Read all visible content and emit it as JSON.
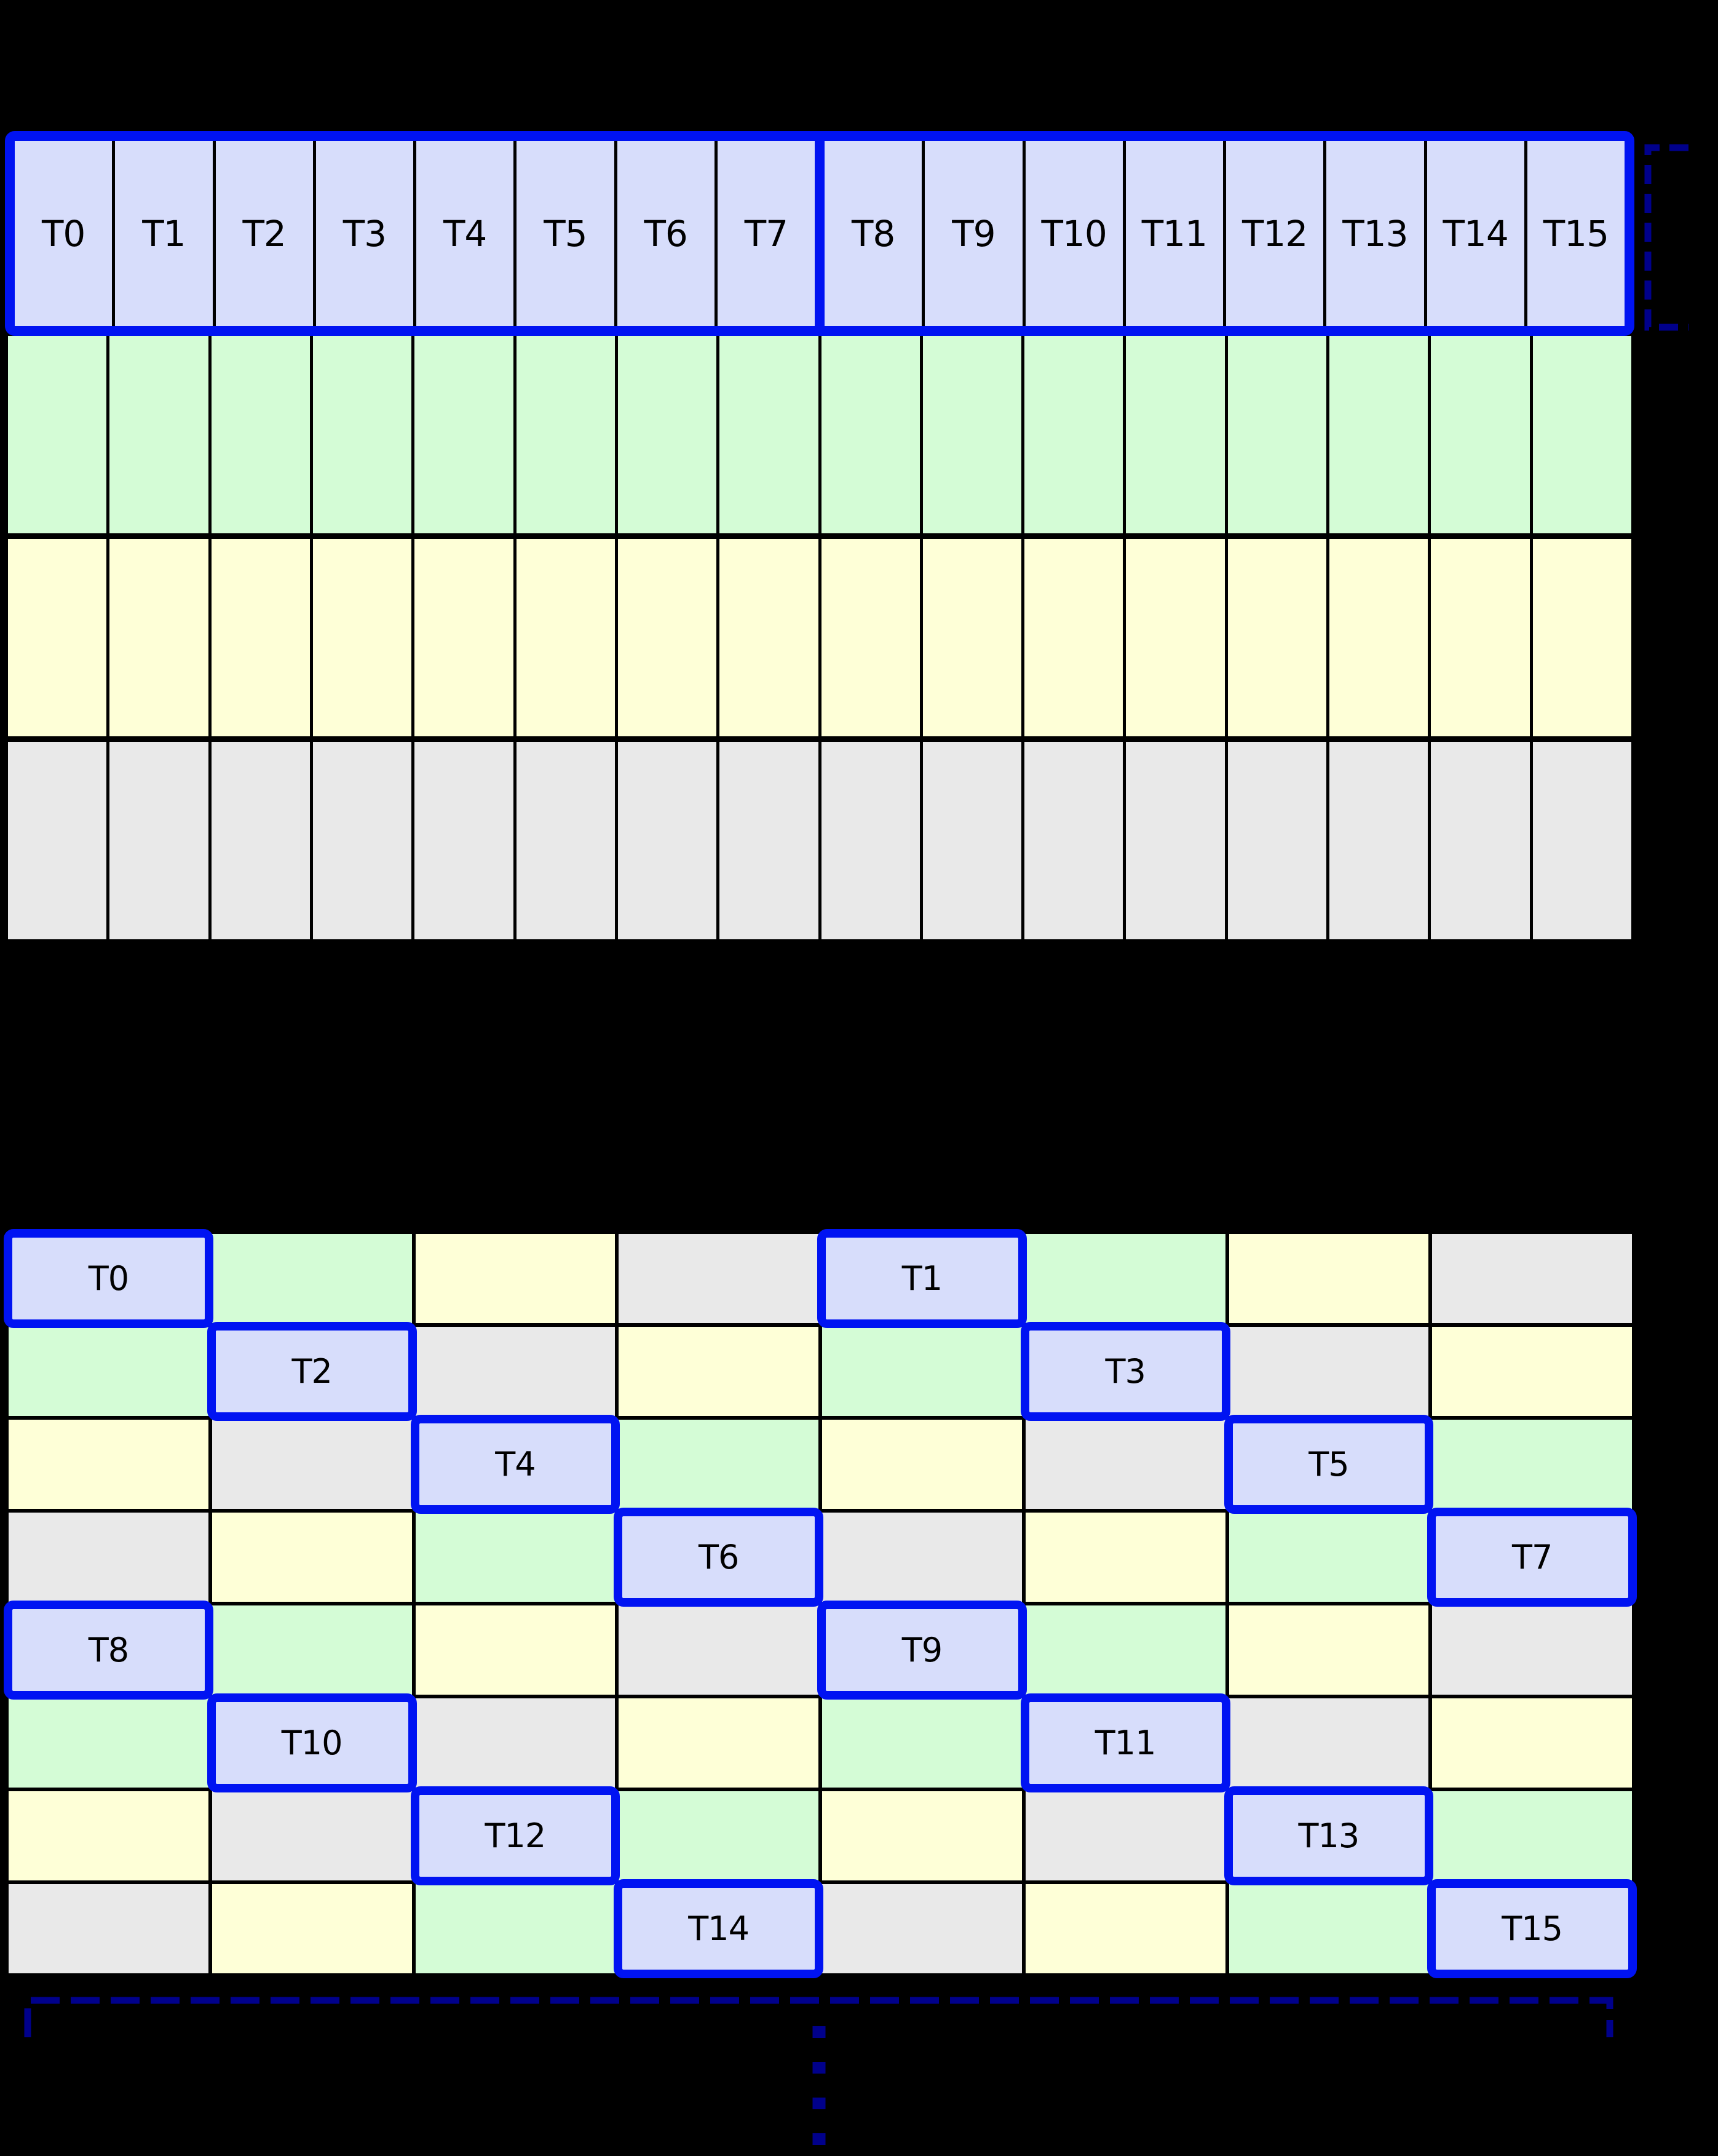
{
  "colors": {
    "background": "#000000",
    "thread_cell": "#d7ddfb",
    "green_cell": "#d4fcd6",
    "yellow_cell": "#feffd7",
    "gray_cell": "#e9e9e9",
    "grid_line": "#000000",
    "highlight_border": "#0013f2",
    "bracket": "#00008b"
  },
  "top_grid": {
    "columns": 16,
    "thread_labels": [
      "T0",
      "T1",
      "T2",
      "T3",
      "T4",
      "T5",
      "T6",
      "T7",
      "T8",
      "T9",
      "T10",
      "T11",
      "T12",
      "T13",
      "T14",
      "T15"
    ],
    "group_split_after_index": 7,
    "data_rows": [
      "green",
      "yellow",
      "gray"
    ]
  },
  "bottom_grid": {
    "columns": 8,
    "rows": [
      [
        "T0",
        "green",
        "yellow",
        "gray",
        "T1",
        "green",
        "yellow",
        "gray"
      ],
      [
        "green",
        "T2",
        "gray",
        "yellow",
        "green",
        "T3",
        "gray",
        "yellow"
      ],
      [
        "yellow",
        "gray",
        "T4",
        "green",
        "yellow",
        "gray",
        "T5",
        "green"
      ],
      [
        "gray",
        "yellow",
        "green",
        "T6",
        "gray",
        "yellow",
        "green",
        "T7"
      ],
      [
        "T8",
        "green",
        "yellow",
        "gray",
        "T9",
        "green",
        "yellow",
        "gray"
      ],
      [
        "green",
        "T10",
        "gray",
        "yellow",
        "green",
        "T11",
        "gray",
        "yellow"
      ],
      [
        "yellow",
        "gray",
        "T12",
        "green",
        "yellow",
        "gray",
        "T13",
        "green"
      ],
      [
        "gray",
        "yellow",
        "green",
        "T14",
        "gray",
        "yellow",
        "green",
        "T15"
      ]
    ]
  },
  "annotations": {
    "continuation_dash_count": 4
  }
}
